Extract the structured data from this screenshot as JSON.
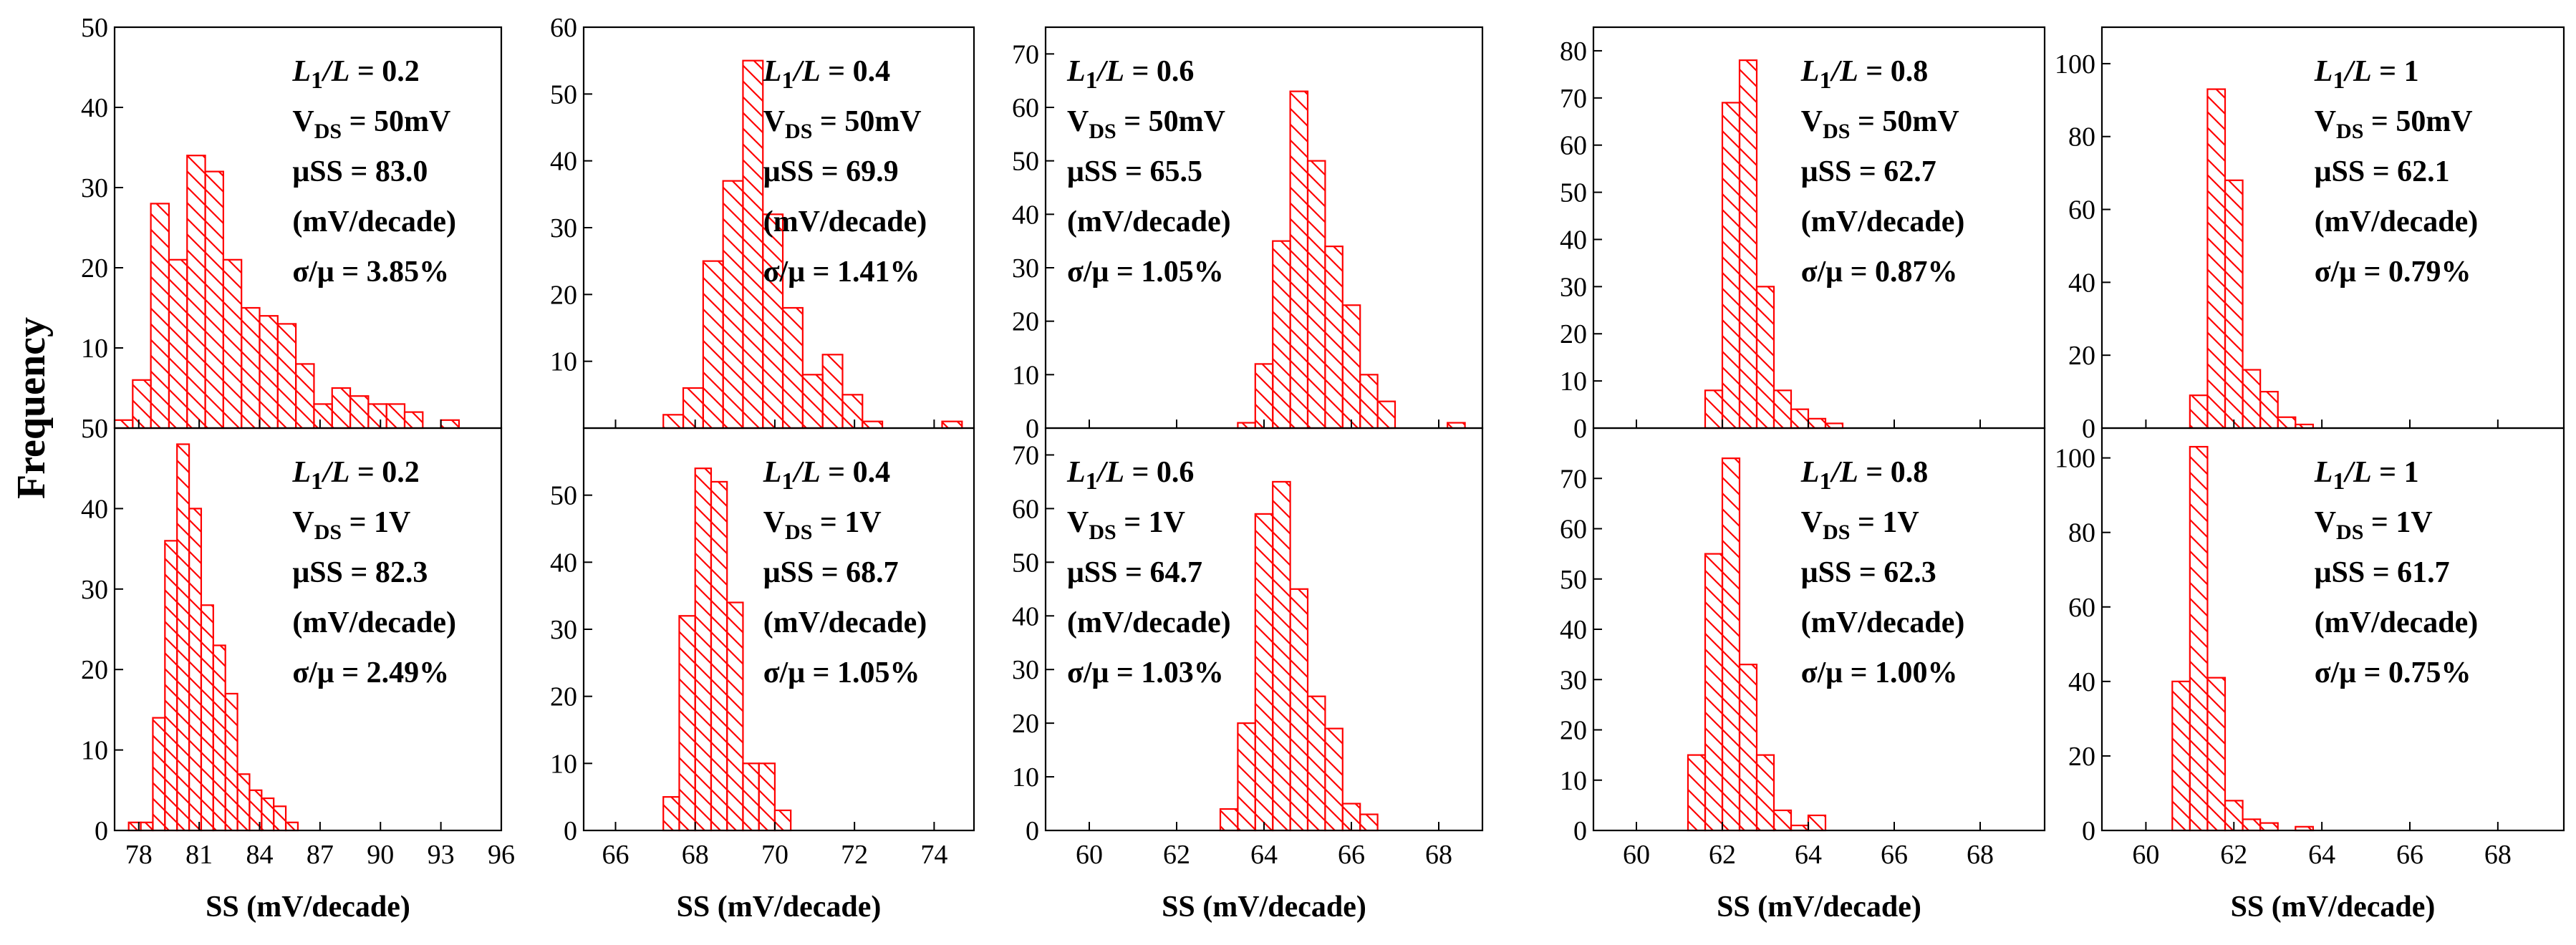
{
  "figure": {
    "ylabel": "Frequency",
    "hatch_color": "#ff0000"
  },
  "chart_data": [
    {
      "type": "bar",
      "row": 0,
      "col": 0,
      "xlabel": "SS (mV/decade)",
      "xlim": [
        76.8,
        96
      ],
      "ylim": [
        0,
        50
      ],
      "xticks": [
        78,
        81,
        84,
        87,
        90,
        93,
        96
      ],
      "yticks": [
        0,
        10,
        20,
        30,
        40,
        50
      ],
      "ytick_labels": [
        "",
        "10",
        "20",
        "30",
        "40",
        "50"
      ],
      "bin_width": 0.9,
      "bin_starts": [
        76.8,
        77.7,
        78.6,
        79.5,
        80.4,
        81.3,
        82.2,
        83.1,
        84.0,
        84.9,
        85.8,
        86.7,
        87.6,
        88.5,
        89.4,
        90.3,
        91.2,
        92.1,
        93.0,
        93.9
      ],
      "values": [
        1,
        6,
        28,
        21,
        34,
        32,
        21,
        15,
        14,
        13,
        8,
        3,
        5,
        4,
        3,
        3,
        2,
        0,
        1,
        0
      ],
      "annotation": {
        "ratio": "L1/L = 0.2",
        "vds": "VDS = 50mV",
        "mu": "μSS = 83.0",
        "unit": "(mV/decade)",
        "sigma": "σ/μ = 3.85%"
      }
    },
    {
      "type": "bar",
      "row": 1,
      "col": 0,
      "xlabel": "SS (mV/decade)",
      "xlim": [
        76.8,
        96
      ],
      "ylim": [
        0,
        50
      ],
      "xticks": [
        78,
        81,
        84,
        87,
        90,
        93,
        96
      ],
      "yticks": [
        0,
        10,
        20,
        30,
        40,
        50
      ],
      "ytick_labels": [
        "0",
        "10",
        "20",
        "30",
        "40",
        "50"
      ],
      "bin_width": 0.6,
      "bin_starts": [
        77.5,
        78.1,
        78.7,
        79.3,
        79.9,
        80.5,
        81.1,
        81.7,
        82.3,
        82.9,
        83.5,
        84.1,
        84.7,
        85.3,
        85.9,
        86.5,
        87.1,
        87.7,
        88.3,
        88.9
      ],
      "values": [
        1,
        1,
        14,
        36,
        48,
        40,
        28,
        23,
        17,
        7,
        5,
        4,
        3,
        1,
        0,
        0,
        0,
        0,
        0,
        0
      ],
      "annotation": {
        "ratio": "L1/L = 0.2",
        "vds": "VDS = 1V",
        "mu": "μSS = 82.3",
        "unit": "(mV/decade)",
        "sigma": "σ/μ = 2.49%"
      }
    },
    {
      "type": "bar",
      "row": 0,
      "col": 1,
      "xlabel": "SS (mV/decade)",
      "xlim": [
        65.2,
        75
      ],
      "ylim": [
        0,
        60
      ],
      "xticks": [
        66,
        68,
        70,
        72,
        74
      ],
      "yticks": [
        0,
        10,
        20,
        30,
        40,
        50,
        60
      ],
      "ytick_labels": [
        "",
        "10",
        "20",
        "30",
        "40",
        "50",
        "60"
      ],
      "bin_width": 0.5,
      "bin_starts": [
        67.2,
        67.7,
        68.2,
        68.7,
        69.2,
        69.7,
        70.2,
        70.7,
        71.2,
        71.7,
        72.2,
        72.7,
        73.2,
        73.7,
        74.2
      ],
      "values": [
        2,
        6,
        25,
        37,
        55,
        32,
        18,
        8,
        11,
        5,
        1,
        0,
        0,
        0,
        1
      ],
      "annotation": {
        "ratio": "L1/L = 0.4",
        "vds": "VDS = 50mV",
        "mu": "μSS = 69.9",
        "unit": "(mV/decade)",
        "sigma": "σ/μ = 1.41%"
      }
    },
    {
      "type": "bar",
      "row": 1,
      "col": 1,
      "xlabel": "SS (mV/decade)",
      "xlim": [
        65.2,
        75
      ],
      "ylim": [
        0,
        60
      ],
      "xticks": [
        66,
        68,
        70,
        72,
        74
      ],
      "yticks": [
        0,
        10,
        20,
        30,
        40,
        50
      ],
      "ytick_labels": [
        "0",
        "10",
        "20",
        "30",
        "40",
        "50"
      ],
      "bin_width": 0.4,
      "bin_starts": [
        67.2,
        67.6,
        68.0,
        68.4,
        68.8,
        69.2,
        69.6,
        70.0,
        70.4,
        70.8
      ],
      "values": [
        5,
        32,
        54,
        52,
        34,
        10,
        10,
        3,
        0,
        0
      ],
      "annotation": {
        "ratio": "L1/L = 0.4",
        "vds": "VDS = 1V",
        "mu": "μSS = 68.7",
        "unit": "(mV/decade)",
        "sigma": "σ/μ = 1.05%"
      }
    },
    {
      "type": "bar",
      "row": 0,
      "col": 2,
      "xlabel": "SS (mV/decade)",
      "xlim": [
        59,
        69
      ],
      "ylim": [
        0,
        75
      ],
      "xticks": [
        60,
        62,
        64,
        66,
        68
      ],
      "yticks": [
        0,
        10,
        20,
        30,
        40,
        50,
        60,
        70
      ],
      "ytick_labels": [
        "0",
        "10",
        "20",
        "30",
        "40",
        "50",
        "60",
        "70"
      ],
      "bin_width": 0.4,
      "bin_starts": [
        63.4,
        63.8,
        64.2,
        64.6,
        65.0,
        65.4,
        65.8,
        66.2,
        66.6,
        67.0,
        67.4,
        67.8,
        68.2
      ],
      "values": [
        1,
        12,
        35,
        63,
        50,
        34,
        23,
        10,
        5,
        0,
        0,
        0,
        1
      ],
      "annotation": {
        "ratio": "L1/L = 0.6",
        "vds": "VDS = 50mV",
        "mu": "μSS = 65.5",
        "unit": "(mV/decade)",
        "sigma": "σ/μ = 1.05%"
      }
    },
    {
      "type": "bar",
      "row": 1,
      "col": 2,
      "xlabel": "SS (mV/decade)",
      "xlim": [
        59,
        69
      ],
      "ylim": [
        0,
        75
      ],
      "xticks": [
        60,
        62,
        64,
        66,
        68
      ],
      "yticks": [
        0,
        10,
        20,
        30,
        40,
        50,
        60,
        70
      ],
      "ytick_labels": [
        "0",
        "10",
        "20",
        "30",
        "40",
        "50",
        "60",
        "70"
      ],
      "bin_width": 0.4,
      "bin_starts": [
        63.0,
        63.4,
        63.8,
        64.2,
        64.6,
        65.0,
        65.4,
        65.8,
        66.2,
        66.6
      ],
      "values": [
        4,
        20,
        59,
        65,
        45,
        25,
        19,
        5,
        3,
        0
      ],
      "annotation": {
        "ratio": "L1/L = 0.6",
        "vds": "VDS = 1V",
        "mu": "μSS = 64.7",
        "unit": "(mV/decade)",
        "sigma": "σ/μ = 1.03%"
      }
    },
    {
      "type": "bar",
      "row": 0,
      "col": 3,
      "xlabel": "SS (mV/decade)",
      "xlim": [
        59,
        69.5
      ],
      "ylim": [
        0,
        85
      ],
      "xticks": [
        60,
        62,
        64,
        66,
        68
      ],
      "yticks": [
        0,
        10,
        20,
        30,
        40,
        50,
        60,
        70,
        80
      ],
      "ytick_labels": [
        "0",
        "10",
        "20",
        "30",
        "40",
        "50",
        "60",
        "70",
        "80"
      ],
      "bin_width": 0.4,
      "bin_starts": [
        61.6,
        62.0,
        62.4,
        62.8,
        63.2,
        63.6,
        64.0,
        64.4
      ],
      "values": [
        8,
        69,
        78,
        30,
        8,
        4,
        2,
        1
      ],
      "annotation": {
        "ratio": "L1/L = 0.8",
        "vds": "VDS = 50mV",
        "mu": "μSS = 62.7",
        "unit": "(mV/decade)",
        "sigma": "σ/μ = 0.87%"
      }
    },
    {
      "type": "bar",
      "row": 1,
      "col": 3,
      "xlabel": "SS (mV/decade)",
      "xlim": [
        59,
        69.5
      ],
      "ylim": [
        0,
        80
      ],
      "xticks": [
        60,
        62,
        64,
        66,
        68
      ],
      "yticks": [
        0,
        10,
        20,
        30,
        40,
        50,
        60,
        70
      ],
      "ytick_labels": [
        "0",
        "10",
        "20",
        "30",
        "40",
        "50",
        "60",
        "70"
      ],
      "bin_width": 0.4,
      "bin_starts": [
        61.2,
        61.6,
        62.0,
        62.4,
        62.8,
        63.2,
        63.6,
        64.0,
        64.4
      ],
      "values": [
        15,
        55,
        74,
        33,
        15,
        4,
        1,
        3,
        0
      ],
      "annotation": {
        "ratio": "L1/L = 0.8",
        "vds": "VDS = 1V",
        "mu": "μSS = 62.3",
        "unit": "(mV/decade)",
        "sigma": "σ/μ = 1.00%"
      }
    },
    {
      "type": "bar",
      "row": 0,
      "col": 4,
      "xlabel": "SS (mV/decade)",
      "xlim": [
        59,
        69.5
      ],
      "ylim": [
        0,
        110
      ],
      "xticks": [
        60,
        62,
        64,
        66,
        68
      ],
      "yticks": [
        0,
        20,
        40,
        60,
        80,
        100
      ],
      "ytick_labels": [
        "0",
        "20",
        "40",
        "60",
        "80",
        "100"
      ],
      "bin_width": 0.4,
      "bin_starts": [
        61.0,
        61.4,
        61.8,
        62.2,
        62.6,
        63.0,
        63.4,
        63.8
      ],
      "values": [
        9,
        93,
        68,
        16,
        10,
        3,
        1,
        0
      ],
      "annotation": {
        "ratio": "L1/L = 1",
        "vds": "VDS = 50mV",
        "mu": "μSS = 62.1",
        "unit": "(mV/decade)",
        "sigma": "σ/μ = 0.79%"
      }
    },
    {
      "type": "bar",
      "row": 1,
      "col": 4,
      "xlabel": "SS (mV/decade)",
      "xlim": [
        59,
        69.5
      ],
      "ylim": [
        0,
        108
      ],
      "xticks": [
        60,
        62,
        64,
        66,
        68
      ],
      "yticks": [
        0,
        20,
        40,
        60,
        80,
        100
      ],
      "ytick_labels": [
        "0",
        "20",
        "40",
        "60",
        "80",
        "100"
      ],
      "bin_width": 0.4,
      "bin_starts": [
        60.6,
        61.0,
        61.4,
        61.8,
        62.2,
        62.6,
        63.0,
        63.4,
        63.8
      ],
      "values": [
        40,
        103,
        41,
        8,
        3,
        2,
        0,
        1,
        0
      ],
      "annotation": {
        "ratio": "L1/L = 1",
        "vds": "VDS = 1V",
        "mu": "μSS = 61.7",
        "unit": "(mV/decade)",
        "sigma": "σ/μ = 0.75%"
      }
    }
  ]
}
